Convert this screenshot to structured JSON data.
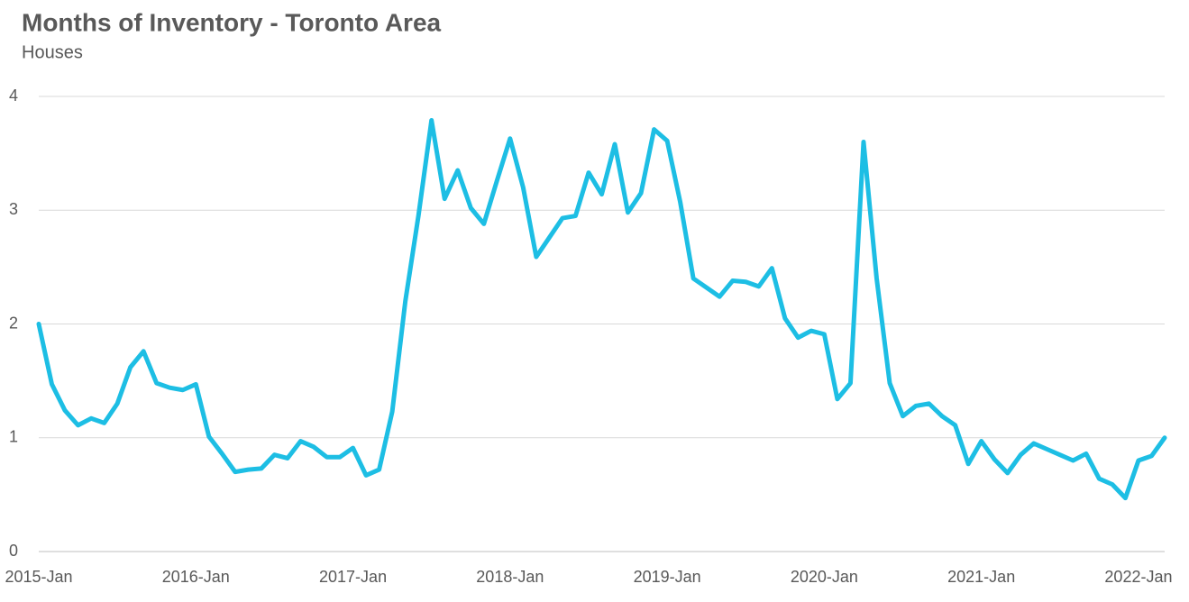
{
  "chart_data": {
    "type": "line",
    "title": "Months of Inventory - Toronto Area",
    "subtitle": "Houses",
    "categories": [
      "2015-Jan",
      null,
      null,
      null,
      null,
      null,
      null,
      null,
      null,
      null,
      null,
      null,
      "2016-Jan",
      null,
      null,
      null,
      null,
      null,
      null,
      null,
      null,
      null,
      null,
      null,
      "2017-Jan",
      null,
      null,
      null,
      null,
      null,
      null,
      null,
      null,
      null,
      null,
      null,
      "2018-Jan",
      null,
      null,
      null,
      null,
      null,
      null,
      null,
      null,
      null,
      null,
      null,
      "2019-Jan",
      null,
      null,
      null,
      null,
      null,
      null,
      null,
      null,
      null,
      null,
      null,
      "2020-Jan",
      null,
      null,
      null,
      null,
      null,
      null,
      null,
      null,
      null,
      null,
      null,
      "2021-Jan",
      null,
      null,
      null,
      null,
      null,
      null,
      null,
      null,
      null,
      null,
      null,
      "2022-Jan",
      null,
      null
    ],
    "series": [
      {
        "name": "Houses",
        "color": "#1dbee4",
        "values": [
          2.0,
          1.47,
          1.24,
          1.11,
          1.17,
          1.13,
          1.3,
          1.62,
          1.76,
          1.48,
          1.44,
          1.42,
          1.47,
          1.01,
          0.86,
          0.7,
          0.72,
          0.73,
          0.85,
          0.82,
          0.97,
          0.92,
          0.83,
          0.83,
          0.91,
          0.67,
          0.72,
          1.23,
          2.2,
          2.95,
          3.79,
          3.1,
          3.35,
          3.02,
          2.88,
          3.26,
          3.63,
          3.2,
          2.59,
          2.76,
          2.93,
          2.95,
          3.33,
          3.14,
          3.58,
          2.98,
          3.15,
          3.71,
          3.61,
          3.07,
          2.4,
          2.32,
          2.24,
          2.38,
          2.37,
          2.33,
          2.49,
          2.05,
          1.88,
          1.94,
          1.91,
          1.34,
          1.48,
          3.6,
          2.4,
          1.48,
          1.19,
          1.28,
          1.3,
          1.19,
          1.11,
          0.77,
          0.97,
          0.81,
          0.69,
          0.85,
          0.95,
          0.9,
          0.85,
          0.8,
          0.86,
          0.64,
          0.59,
          0.47,
          0.8,
          0.84,
          1.0
        ]
      }
    ],
    "ylim": [
      0,
      4
    ],
    "yticks": [
      0,
      1,
      2,
      3,
      4
    ],
    "grid": true
  }
}
